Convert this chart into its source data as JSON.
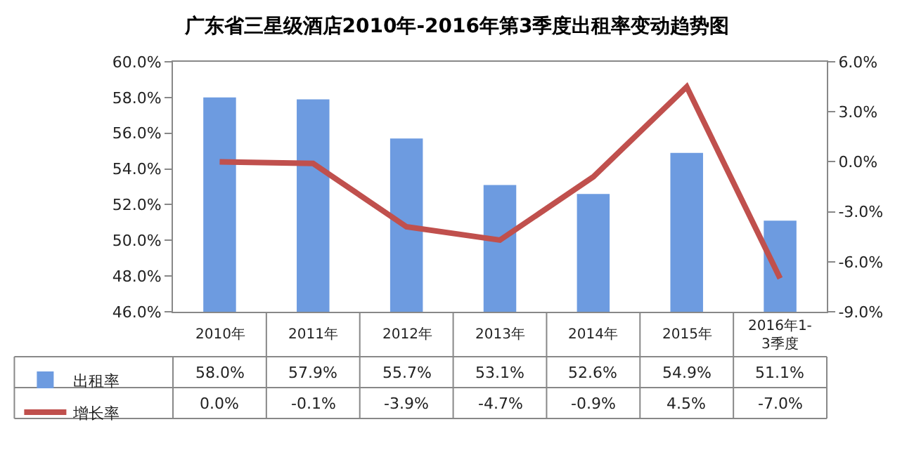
{
  "chart_data": {
    "type": "bar",
    "title": "广东省三星级酒店2010年-2016年第3季度出租率变动趋势图",
    "categories": [
      "2010年",
      "2011年",
      "2012年",
      "2013年",
      "2014年",
      "2015年",
      "2016年1-3季度"
    ],
    "series": [
      {
        "name": "出租率",
        "color": "#6d9be0",
        "values": [
          58.0,
          57.9,
          55.7,
          53.1,
          52.6,
          54.9,
          51.1
        ],
        "value_labels": [
          "58.0%",
          "57.9%",
          "55.7%",
          "53.1%",
          "52.6%",
          "54.9%",
          "51.1%"
        ]
      },
      {
        "name": "增长率",
        "type": "line",
        "axis": "y2",
        "color": "#c0504d",
        "values": [
          0.0,
          -0.1,
          -3.9,
          -4.7,
          -0.9,
          4.5,
          -7.0
        ],
        "value_labels": [
          "0.0%",
          "-0.1%",
          "-3.9%",
          "-4.7%",
          "-0.9%",
          "4.5%",
          "-7.0%"
        ]
      }
    ],
    "ylim": [
      46,
      60
    ],
    "yticks": [
      {
        "value": 46,
        "label": "46.0%"
      },
      {
        "value": 48,
        "label": "48.0%"
      },
      {
        "value": 50,
        "label": "50.0%"
      },
      {
        "value": 52,
        "label": "52.0%"
      },
      {
        "value": 54,
        "label": "54.0%"
      },
      {
        "value": 56,
        "label": "56.0%"
      },
      {
        "value": 58,
        "label": "58.0%"
      },
      {
        "value": 60,
        "label": "60.0%"
      }
    ],
    "y2lim": [
      -9,
      6
    ],
    "y2ticks": [
      {
        "value": -9,
        "label": "-9.0%"
      },
      {
        "value": -6,
        "label": "-6.0%"
      },
      {
        "value": -3,
        "label": "-3.0%"
      },
      {
        "value": 0,
        "label": "0.0%"
      },
      {
        "value": 3,
        "label": "3.0%"
      },
      {
        "value": 6,
        "label": "6.0%"
      }
    ],
    "legend": "bottom left",
    "line_style": "solid",
    "marker": "none"
  }
}
